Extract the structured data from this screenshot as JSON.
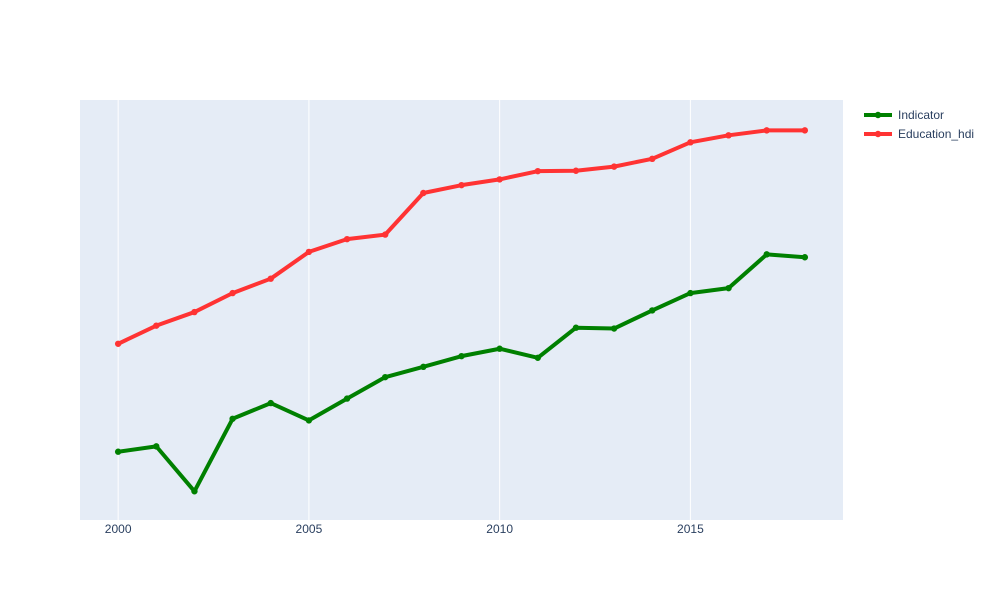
{
  "chart_data": {
    "type": "line",
    "title": "",
    "xlabel": "",
    "ylabel": "",
    "xlim": [
      1999,
      2019
    ],
    "ylim": [
      0,
      1
    ],
    "x_ticks": [
      2000,
      2005,
      2010,
      2015
    ],
    "y_ticks_shown": false,
    "grid": "vertical",
    "legend": "top-right",
    "background": "#e5ecf6",
    "x": [
      2000,
      2001,
      2002,
      2003,
      2004,
      2005,
      2006,
      2007,
      2008,
      2009,
      2010,
      2011,
      2012,
      2013,
      2014,
      2015,
      2016,
      2017,
      2018
    ],
    "series": [
      {
        "name": "Indicator",
        "color": "#008000",
        "values": [
          0.156,
          0.169,
          0.06,
          0.236,
          0.274,
          0.232,
          0.285,
          0.337,
          0.362,
          0.388,
          0.406,
          0.384,
          0.457,
          0.455,
          0.499,
          0.541,
          0.553,
          0.635,
          0.628
        ]
      },
      {
        "name": "Education_hdi",
        "color": "#ff3333",
        "values": [
          0.418,
          0.462,
          0.495,
          0.541,
          0.576,
          0.641,
          0.672,
          0.683,
          0.784,
          0.803,
          0.817,
          0.837,
          0.838,
          0.848,
          0.867,
          0.907,
          0.924,
          0.936,
          0.936
        ]
      }
    ]
  }
}
